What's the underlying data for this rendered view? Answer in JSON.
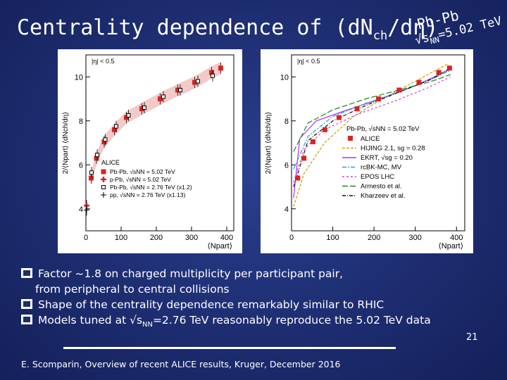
{
  "slide": {
    "title_main": "Centrality dependence of (dN",
    "title_sub": "ch",
    "title_end": "/dη)",
    "system_label": "Pb-Pb",
    "energy_prefix": "√s",
    "energy_sub": "NN",
    "energy_value": "=5.02 TeV",
    "bullets": [
      {
        "line1": "Factor ~1.8 on charged multiplicity per participant pair,",
        "line2": "from peripheral to central collisions"
      },
      {
        "line1": "Shape of the centrality dependence remarkably similar to RHIC"
      },
      {
        "line1": "Models tuned at √s",
        "sub": "NN",
        "rest": "=2.76 TeV reasonably reproduce the 5.02 TeV data"
      }
    ],
    "footer": "E. Scomparin, Overview of recent ALICE results, Kruger, December 2016",
    "page_number": "21"
  },
  "chart_data": [
    {
      "type": "scatter",
      "eta_label": "|η| < 0.5",
      "ylabel": "2/⟨Npart⟩ ⟨dNch/dη⟩",
      "xlabel": "⟨Npart⟩",
      "xlim": [
        0,
        420
      ],
      "ylim": [
        3,
        11
      ],
      "x_ticks": [
        "0",
        "100",
        "200",
        "300",
        "400"
      ],
      "y_ticks": [
        "4",
        "6",
        "8",
        "10"
      ],
      "legend_title": "ALICE",
      "legend": [
        "Pb-Pb, √sNN = 5.02 TeV",
        "p-Pb, √sNN = 5.02 TeV",
        "Pb-Pb, √sNN = 2.76 TeV (x1.2)",
        "pp, √sNN = 2.76 TeV (x1.13)"
      ],
      "colors": {
        "pbpb502": "#d9231f",
        "band": "#f3c9c9"
      },
      "series": [
        {
          "name": "Pb-Pb, √sNN = 5.02 TeV",
          "marker": "square-filled",
          "x": [
            15,
            30,
            52,
            81,
            115,
            159,
            211,
            261,
            309,
            357,
            383
          ],
          "y": [
            5.4,
            6.3,
            7.05,
            7.6,
            8.15,
            8.55,
            9.0,
            9.4,
            9.75,
            10.2,
            10.4
          ]
        },
        {
          "name": "p-Pb, √sNN = 5.02 TeV",
          "marker": "cross",
          "x": [
            2
          ],
          "y": [
            4.15
          ]
        },
        {
          "name": "Pb-Pb, √sNN = 2.76 TeV (x1.2)",
          "marker": "square-open",
          "x": [
            16,
            32,
            55,
            86,
            121,
            166,
            220,
            268,
            318,
            360
          ],
          "y": [
            5.65,
            6.45,
            7.15,
            7.75,
            8.25,
            8.6,
            9.1,
            9.4,
            9.8,
            10.05
          ]
        },
        {
          "name": "pp, √sNN = 2.76 TeV (x1.13)",
          "marker": "cross-open",
          "x": [
            2
          ],
          "y": [
            3.95
          ]
        }
      ]
    },
    {
      "type": "line",
      "eta_label": "|η| < 0.5",
      "ylabel": "2/⟨Npart⟩ ⟨dNch/dη⟩",
      "xlabel": "⟨Npart⟩",
      "xlim": [
        0,
        420
      ],
      "ylim": [
        3,
        11
      ],
      "x_ticks": [
        "0",
        "100",
        "200",
        "300",
        "400"
      ],
      "y_ticks": [
        "4",
        "6",
        "8",
        "10"
      ],
      "legend_title": "Pb-Pb, √sNN = 5.02 TeV",
      "data_series": {
        "name": "ALICE",
        "x": [
          15,
          30,
          52,
          81,
          115,
          159,
          211,
          261,
          309,
          357,
          383
        ],
        "y": [
          5.4,
          6.3,
          7.05,
          7.6,
          8.15,
          8.55,
          9.0,
          9.4,
          9.75,
          10.2,
          10.4
        ]
      },
      "models": [
        {
          "name": "HIJING 2.1, sg = 0.28",
          "color": "#c9a200",
          "dash": "4,2",
          "x": [
            5,
            30,
            80,
            150,
            220,
            300,
            380
          ],
          "y": [
            4.1,
            5.6,
            7.0,
            8.2,
            9.0,
            9.8,
            10.6
          ]
        },
        {
          "name": "EKRT, √sg = 0.20",
          "color": "#b030ff",
          "dash": "",
          "x": [
            5,
            20,
            60,
            120,
            200,
            300,
            380
          ],
          "y": [
            4.5,
            7.2,
            8.0,
            8.4,
            8.9,
            9.6,
            10.3
          ]
        },
        {
          "name": "rcBK-MC, MV",
          "color": "#2a9dd8",
          "dash": "6,2,2,2",
          "x": [
            5,
            40,
            100,
            180,
            260,
            340,
            385
          ],
          "y": [
            5.8,
            7.3,
            8.2,
            8.8,
            9.3,
            9.9,
            10.3
          ]
        },
        {
          "name": "EPOS LHC",
          "color": "#cc44cc",
          "dash": "3,3",
          "x": [
            5,
            30,
            80,
            160,
            250,
            330,
            385
          ],
          "y": [
            5.2,
            6.7,
            7.6,
            8.3,
            8.9,
            9.5,
            10.0
          ]
        },
        {
          "name": "Armesto et al.",
          "color": "#1a8a1a",
          "dash": "8,3",
          "x": [
            5,
            40,
            100,
            180,
            260,
            340,
            385
          ],
          "y": [
            6.6,
            7.9,
            8.5,
            9.0,
            9.4,
            9.8,
            10.1
          ]
        },
        {
          "name": "Kharzeev et al.",
          "color": "#111111",
          "dash": "5,2,1,2",
          "x": [
            5,
            40,
            100,
            180,
            260,
            340,
            385
          ],
          "y": [
            5.0,
            7.1,
            8.0,
            8.7,
            9.3,
            9.9,
            10.4
          ]
        }
      ]
    }
  ]
}
